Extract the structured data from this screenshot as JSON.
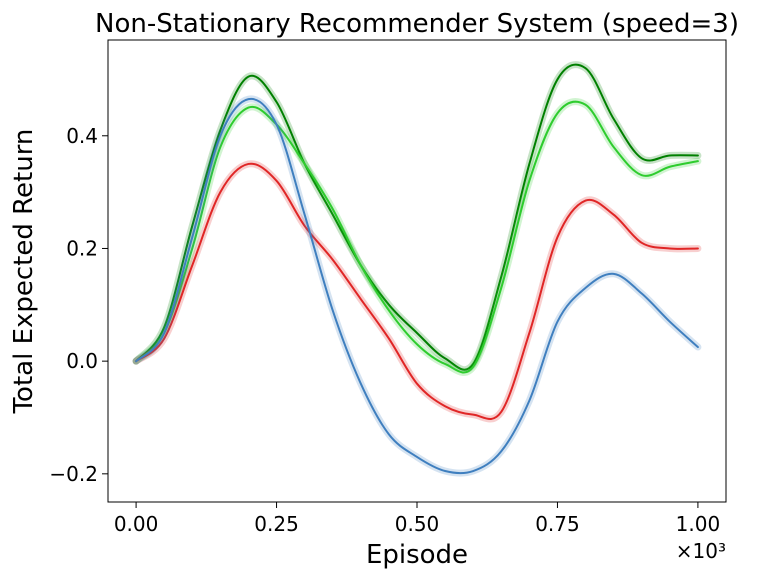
{
  "chart_data": {
    "type": "line",
    "title": "Non-Stationary Recommender System (speed=3)",
    "xlabel": "Episode",
    "ylabel": "Total Expected Return",
    "x_multiplier_label": "×10³",
    "xlim": [
      -0.05,
      1.05
    ],
    "ylim": [
      -0.25,
      0.57
    ],
    "x_ticks": [
      0.0,
      0.25,
      0.5,
      0.75,
      1.0
    ],
    "x_tick_labels": [
      "0.00",
      "0.25",
      "0.50",
      "0.75",
      "1.00"
    ],
    "y_ticks": [
      -0.2,
      0.0,
      0.2,
      0.4
    ],
    "y_tick_labels": [
      "−0.2",
      "0.0",
      "0.2",
      "0.4"
    ],
    "grid": false,
    "legend": "none",
    "x": [
      0.0,
      0.05,
      0.1,
      0.15,
      0.2,
      0.25,
      0.3,
      0.35,
      0.4,
      0.45,
      0.5,
      0.55,
      0.6,
      0.65,
      0.7,
      0.75,
      0.8,
      0.85,
      0.9,
      0.95,
      1.0
    ],
    "series": [
      {
        "color": "#008000",
        "values": [
          0.0,
          0.06,
          0.24,
          0.41,
          0.505,
          0.46,
          0.35,
          0.26,
          0.17,
          0.1,
          0.05,
          0.005,
          -0.005,
          0.15,
          0.35,
          0.5,
          0.52,
          0.43,
          0.36,
          0.365,
          0.365
        ]
      },
      {
        "color": "#2ecc2e",
        "values": [
          0.0,
          0.05,
          0.2,
          0.38,
          0.45,
          0.42,
          0.35,
          0.27,
          0.17,
          0.09,
          0.03,
          -0.005,
          -0.01,
          0.13,
          0.32,
          0.44,
          0.455,
          0.38,
          0.33,
          0.345,
          0.355
        ]
      },
      {
        "color": "#e02626",
        "values": [
          0.0,
          0.04,
          0.17,
          0.3,
          0.35,
          0.32,
          0.24,
          0.18,
          0.11,
          0.04,
          -0.04,
          -0.08,
          -0.095,
          -0.09,
          0.05,
          0.22,
          0.285,
          0.26,
          0.21,
          0.2,
          0.2
        ]
      },
      {
        "color": "#3f7fbf",
        "values": [
          0.0,
          0.05,
          0.22,
          0.4,
          0.465,
          0.42,
          0.26,
          0.09,
          -0.04,
          -0.13,
          -0.17,
          -0.195,
          -0.195,
          -0.16,
          -0.07,
          0.07,
          0.13,
          0.155,
          0.12,
          0.07,
          0.025
        ]
      }
    ]
  }
}
